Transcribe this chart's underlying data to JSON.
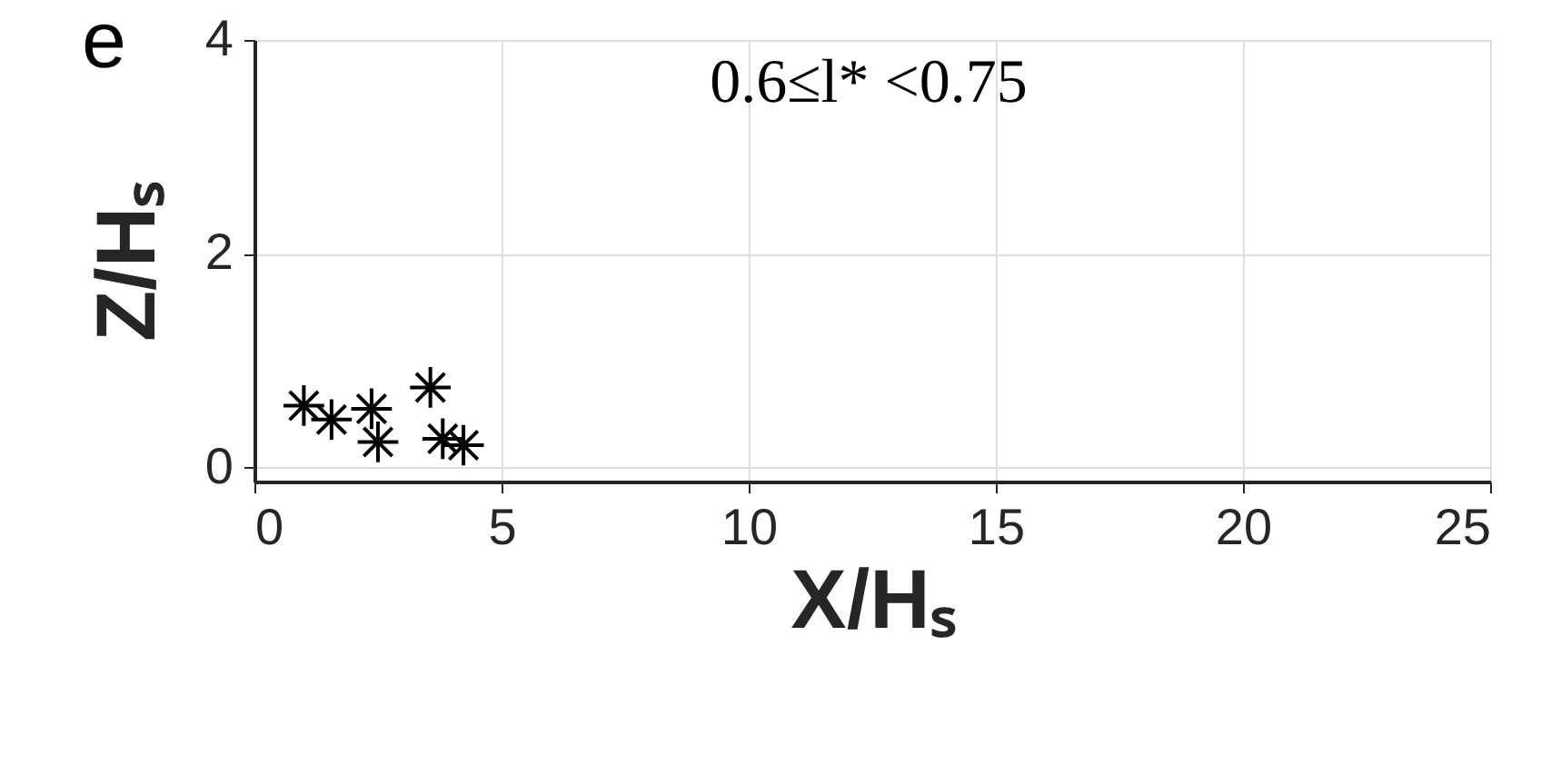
{
  "chart_data": {
    "type": "scatter",
    "xlabel": "X/Hₛ",
    "ylabel": "Z/Hₛ",
    "annotations": [
      "e",
      "0.6≤l* <0.75"
    ],
    "x": [
      1.0,
      1.56,
      2.37,
      2.5,
      3.56,
      3.81,
      4.23
    ],
    "series": [
      {
        "color": "#000000",
        "values": [
          0.58,
          0.45,
          0.55,
          0.24,
          0.75,
          0.27,
          0.21
        ]
      }
    ],
    "xlim": [
      0,
      25
    ],
    "xticks": [
      0,
      5,
      10,
      15,
      20,
      25
    ],
    "ylim": [
      -0.13,
      4
    ],
    "yticks": [
      0,
      2,
      4
    ],
    "grid": true,
    "marker": "cross"
  }
}
